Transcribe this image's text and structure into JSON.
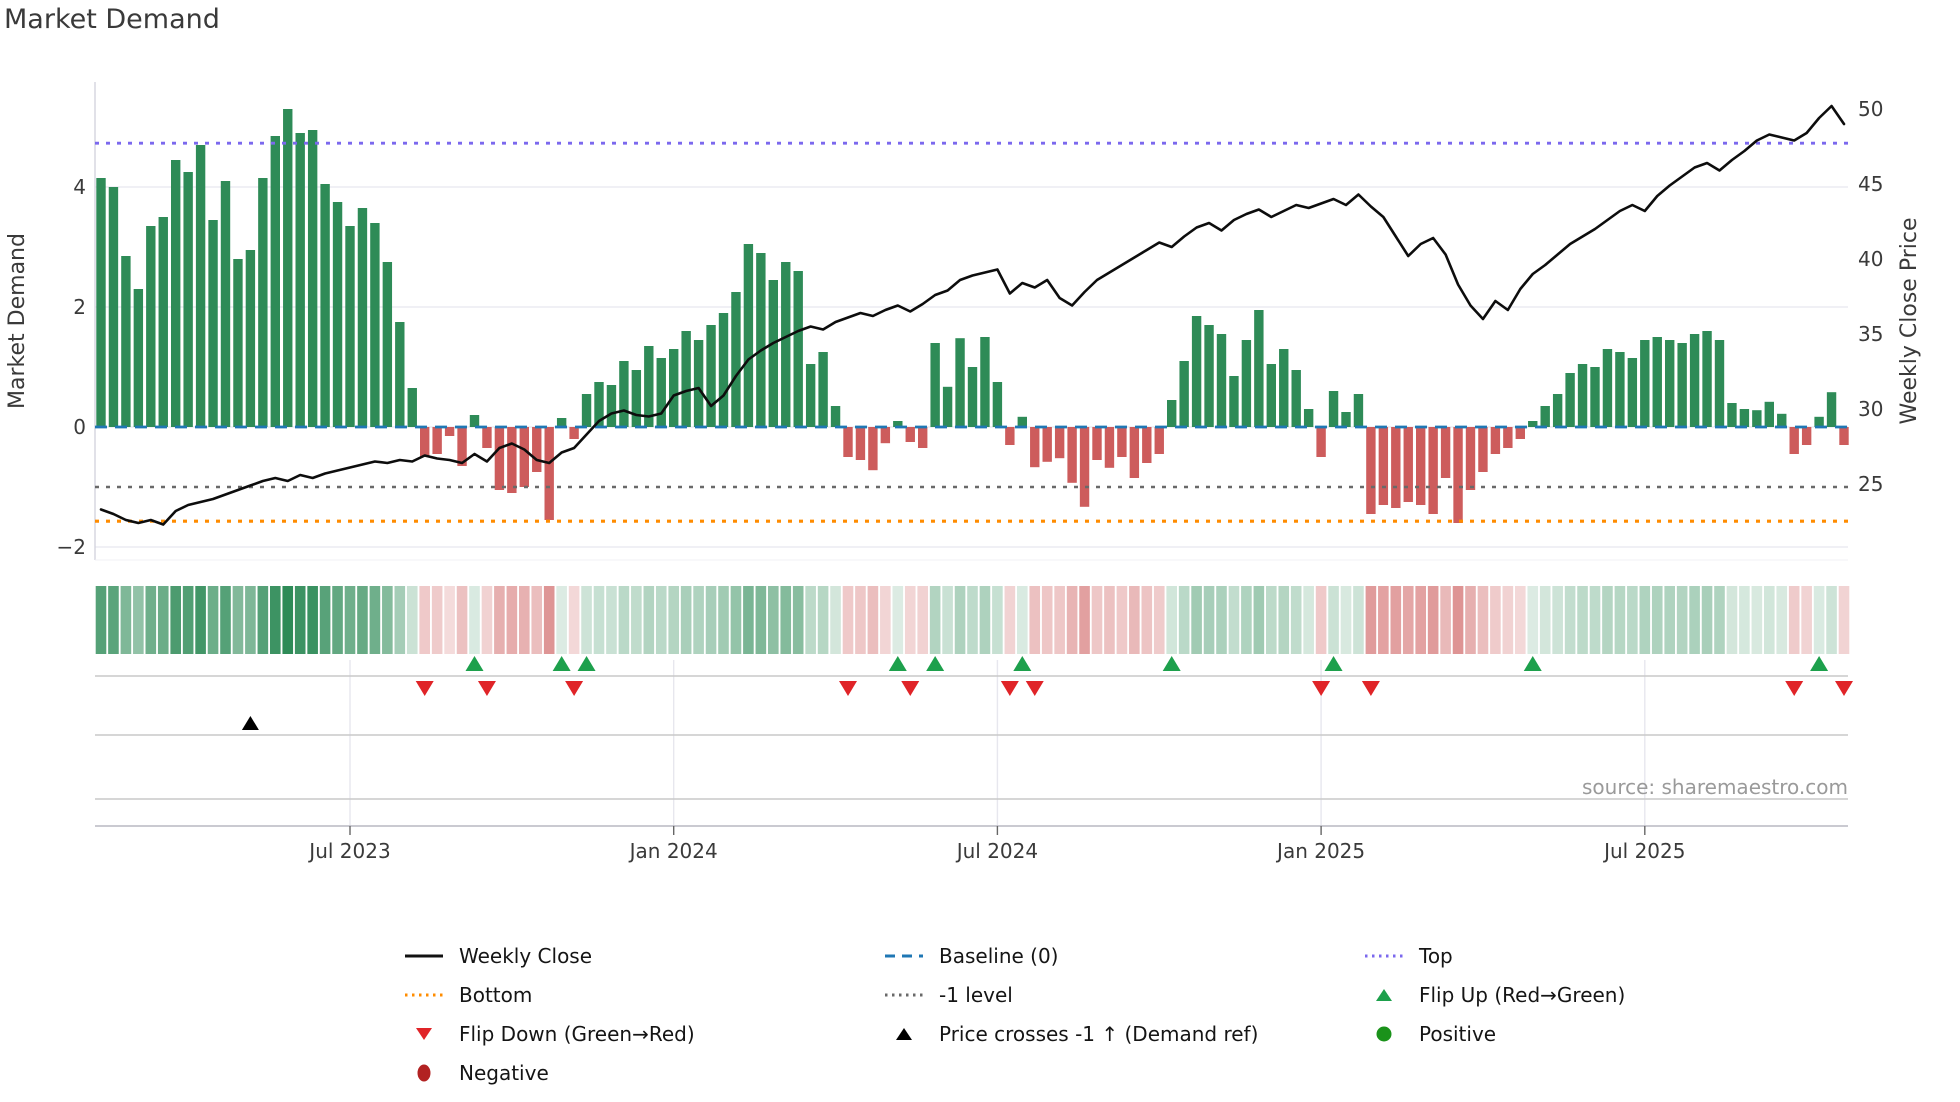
{
  "chart_data": {
    "type": "bar+line",
    "title": "Market Demand",
    "source": "source: sharemaestro.com",
    "left_axis": {
      "label": "Market Demand",
      "ticks": [
        {
          "label": "4",
          "value": 4
        },
        {
          "label": "2",
          "value": 2
        },
        {
          "label": "0",
          "value": 0
        },
        {
          "label": "−2",
          "value": -2
        }
      ]
    },
    "right_axis": {
      "label": "Weekly Close Price",
      "ticks": [
        {
          "label": "50",
          "value": 50
        },
        {
          "label": "45",
          "value": 45
        },
        {
          "label": "40",
          "value": 40
        },
        {
          "label": "35",
          "value": 35
        },
        {
          "label": "30",
          "value": 30
        },
        {
          "label": "25",
          "value": 25
        }
      ]
    },
    "x_axis": {
      "tick_labels": [
        "Jul 2023",
        "Jan 2024",
        "Jul 2024",
        "Jan 2025",
        "Jul 2025"
      ],
      "tick_weeks": [
        20,
        46,
        72,
        98,
        124
      ],
      "num_weeks": 141
    },
    "levels": {
      "baseline": 0,
      "minus_one_level": -1,
      "top_demand": 4.73,
      "bottom_demand": -1.57,
      "top_price": 47.7,
      "bottom_price": 22.6
    },
    "series": [
      {
        "name": "Market Demand",
        "type": "bar",
        "values": [
          4.15,
          4.0,
          2.85,
          2.3,
          3.35,
          3.5,
          4.45,
          4.25,
          4.7,
          3.45,
          4.1,
          2.8,
          2.95,
          4.15,
          4.85,
          5.3,
          4.9,
          4.95,
          4.05,
          3.75,
          3.35,
          3.65,
          3.4,
          2.75,
          1.75,
          0.65,
          -0.5,
          -0.45,
          -0.15,
          -0.65,
          0.2,
          -0.35,
          -1.05,
          -1.1,
          -1.0,
          -0.75,
          -1.55,
          0.15,
          -0.2,
          0.55,
          0.75,
          0.7,
          1.1,
          0.95,
          1.35,
          1.15,
          1.3,
          1.6,
          1.45,
          1.7,
          1.9,
          2.25,
          3.05,
          2.9,
          2.45,
          2.75,
          2.6,
          1.05,
          1.25,
          0.35,
          -0.5,
          -0.55,
          -0.72,
          -0.27,
          0.1,
          -0.25,
          -0.35,
          1.4,
          0.67,
          1.48,
          1.0,
          1.5,
          0.75,
          -0.3,
          0.17,
          -0.67,
          -0.58,
          -0.52,
          -0.93,
          -1.33,
          -0.55,
          -0.68,
          -0.5,
          -0.85,
          -0.6,
          -0.45,
          0.45,
          1.1,
          1.85,
          1.7,
          1.55,
          0.85,
          1.45,
          1.95,
          1.05,
          1.3,
          0.95,
          0.3,
          -0.5,
          0.6,
          0.25,
          0.55,
          -1.45,
          -1.3,
          -1.35,
          -1.25,
          -1.3,
          -1.45,
          -0.85,
          -1.6,
          -1.05,
          -0.75,
          -0.45,
          -0.35,
          -0.2,
          0.1,
          0.35,
          0.55,
          0.9,
          1.05,
          1.0,
          1.3,
          1.25,
          1.15,
          1.45,
          1.5,
          1.45,
          1.4,
          1.55,
          1.6,
          1.45,
          0.4,
          0.3,
          0.28,
          0.42,
          0.22,
          -0.45,
          -0.3,
          0.17,
          0.58,
          -0.3
        ]
      },
      {
        "name": "Weekly Close",
        "type": "line",
        "values": [
          23.3,
          23.0,
          22.6,
          22.4,
          22.6,
          22.3,
          23.2,
          23.6,
          23.8,
          24.0,
          24.3,
          24.6,
          24.9,
          25.2,
          25.4,
          25.2,
          25.6,
          25.4,
          25.7,
          25.9,
          26.1,
          26.3,
          26.5,
          26.4,
          26.6,
          26.5,
          26.9,
          26.7,
          26.6,
          26.4,
          27.0,
          26.5,
          27.4,
          27.7,
          27.3,
          26.6,
          26.4,
          27.1,
          27.4,
          28.3,
          29.2,
          29.7,
          29.9,
          29.6,
          29.5,
          29.7,
          30.9,
          31.2,
          31.4,
          30.2,
          30.9,
          32.2,
          33.3,
          33.9,
          34.4,
          34.8,
          35.2,
          35.5,
          35.3,
          35.8,
          36.1,
          36.4,
          36.2,
          36.6,
          36.9,
          36.5,
          37.0,
          37.6,
          37.9,
          38.6,
          38.9,
          39.1,
          39.3,
          37.7,
          38.4,
          38.1,
          38.6,
          37.4,
          36.9,
          37.8,
          38.6,
          39.1,
          39.6,
          40.1,
          40.6,
          41.1,
          40.8,
          41.5,
          42.1,
          42.4,
          41.9,
          42.6,
          43.0,
          43.3,
          42.8,
          43.2,
          43.6,
          43.4,
          43.7,
          44.0,
          43.6,
          44.3,
          43.5,
          42.8,
          41.5,
          40.2,
          41.0,
          41.4,
          40.3,
          38.3,
          36.9,
          36.0,
          37.2,
          36.6,
          38.0,
          39.0,
          39.6,
          40.3,
          41.0,
          41.5,
          42.0,
          42.6,
          43.2,
          43.6,
          43.2,
          44.2,
          44.9,
          45.5,
          46.1,
          46.4,
          45.9,
          46.6,
          47.2,
          47.9,
          48.3,
          48.1,
          47.9,
          48.4,
          49.4,
          50.2,
          49.0
        ]
      }
    ],
    "markers": {
      "flip_up_weeks": [
        30,
        37,
        39,
        64,
        67,
        74,
        86,
        99,
        115,
        138
      ],
      "flip_down_weeks": [
        26,
        31,
        38,
        60,
        65,
        73,
        75,
        98,
        102,
        136,
        140
      ],
      "price_cross_weeks": [
        12
      ]
    },
    "heatmap": {
      "description": "weekly demand sign/magnitude strip",
      "positive_color": "#2e8b57",
      "negative_color": "#cd5c5c"
    }
  },
  "legend": {
    "columns": [
      [
        {
          "label": "Weekly Close",
          "marker": "line",
          "style": "solid",
          "color": "#111111"
        },
        {
          "label": "Bottom",
          "marker": "line",
          "style": "dotted",
          "color": "#ff8c00"
        },
        {
          "label": "Flip Down (Green→Red)",
          "marker": "triangle-down",
          "color": "#e02428"
        },
        {
          "label": "Negative",
          "marker": "ellipse",
          "color": "#b22222"
        }
      ],
      [
        {
          "label": "Baseline (0)",
          "marker": "line",
          "style": "dashed",
          "color": "#1f77b4"
        },
        {
          "label": "-1 level",
          "marker": "line",
          "style": "dotted",
          "color": "#696969"
        },
        {
          "label": "Price crosses -1 ↑ (Demand ref)",
          "marker": "triangle-up",
          "color": "#000000"
        }
      ],
      [
        {
          "label": "Top",
          "marker": "line",
          "style": "dotted",
          "color": "#7b68ee"
        },
        {
          "label": "Flip Up (Red→Green)",
          "marker": "triangle-up",
          "color": "#1da04c"
        },
        {
          "label": "Positive",
          "marker": "circle",
          "color": "#1a921a"
        }
      ]
    ]
  },
  "colors": {
    "bar_positive": "#2e8b57",
    "bar_negative": "#cd5c5c",
    "price_line": "#0d0d0d",
    "baseline": "#1f77b4",
    "top_line": "#7b68ee",
    "bottom_line": "#ff8c00",
    "minus_one_line": "#696969",
    "flip_up": "#1da04c",
    "flip_down": "#e02428",
    "price_cross": "#000000",
    "grid": "#ebebf2",
    "panel_line": "#c9c9c9",
    "spine": "#d4d4de",
    "tick_text": "#3a3a3a",
    "source_text": "#9a9a9a"
  }
}
